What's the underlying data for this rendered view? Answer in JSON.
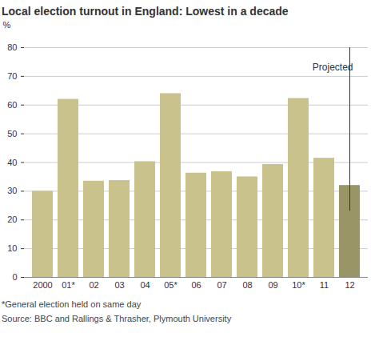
{
  "chart_data": {
    "type": "bar",
    "title": "Local election turnout in England: Lowest in a decade",
    "ylabel": "%",
    "categories": [
      "2000",
      "01*",
      "02",
      "03",
      "04",
      "05*",
      "06",
      "07",
      "08",
      "09",
      "10*",
      "11",
      "12"
    ],
    "values": [
      30,
      62,
      33.5,
      33.7,
      40.3,
      64,
      36.3,
      36.8,
      35,
      39.3,
      62.3,
      41.5,
      32
    ],
    "colors": [
      "#c9c28c",
      "#c9c28c",
      "#c9c28c",
      "#c9c28c",
      "#c9c28c",
      "#c9c28c",
      "#c9c28c",
      "#c9c28c",
      "#c9c28c",
      "#c9c28c",
      "#c9c28c",
      "#c9c28c",
      "#9a9566"
    ],
    "ylim": [
      0,
      80
    ],
    "yticks": [
      0,
      10,
      20,
      30,
      40,
      50,
      60,
      70,
      80
    ],
    "grid": true,
    "annotations": [
      {
        "text": "Projected",
        "category": "12"
      }
    ],
    "notes": [
      "*General election held on same day",
      "Source: BBC and Rallings & Thrasher, Plymouth University"
    ]
  }
}
